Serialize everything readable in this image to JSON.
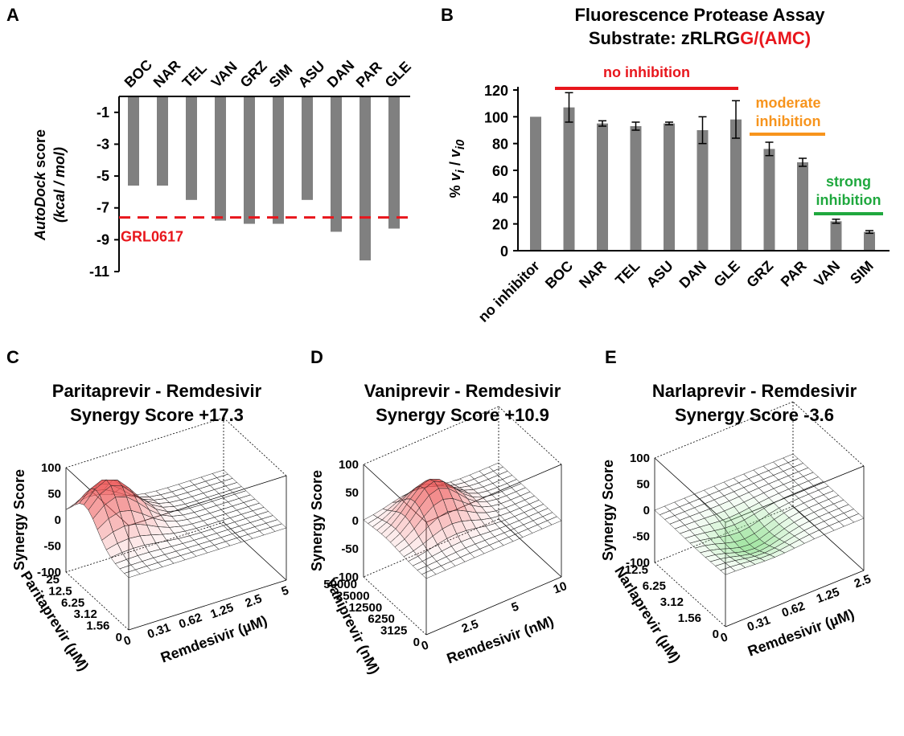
{
  "colors": {
    "bar": "#808080",
    "red": "#e8161c",
    "orange": "#f7941d",
    "green": "#1fa83e",
    "surface_pos": "#ee5a5a",
    "surface_neg": "#8fe08f"
  },
  "chart_data": [
    {
      "id": "A",
      "type": "bar",
      "panel_label": "A",
      "categories": [
        "BOC",
        "NAR",
        "TEL",
        "VAN",
        "GRZ",
        "SIM",
        "ASU",
        "DAN",
        "PAR",
        "GLE"
      ],
      "values": [
        -5.6,
        -5.6,
        -6.5,
        -7.8,
        -8.0,
        -8.0,
        -6.5,
        -8.5,
        -10.3,
        -8.3
      ],
      "ylabel_italic": "AutoDock",
      "ylabel_rest": " score",
      "ylabel_units": "(kcal / mol)",
      "yticks": [
        -1,
        -3,
        -5,
        -7,
        -9,
        -11
      ],
      "ylim": [
        0,
        -11
      ],
      "reference_line": {
        "label": "GRL0617",
        "value": -7.6,
        "style": "dashed"
      }
    },
    {
      "id": "B",
      "type": "bar",
      "panel_label": "B",
      "title_line1": "Fluorescence Protease Assay",
      "title_line2_black": "Substrate: zRLRG",
      "title_line2_red": "G/(AMC)",
      "categories": [
        "no inhibitor",
        "BOC",
        "NAR",
        "TEL",
        "ASU",
        "DAN",
        "GLE",
        "GRZ",
        "PAR",
        "VAN",
        "SIM"
      ],
      "values": [
        100,
        107,
        95,
        93,
        95,
        90,
        98,
        76,
        66,
        22,
        14
      ],
      "errors": [
        0,
        11,
        2,
        3,
        1,
        10,
        14,
        5,
        3,
        1.5,
        1
      ],
      "ylabel_pct": "% ",
      "ylabel_v": "v",
      "ylabel_i": "i",
      "ylabel_slash": " / ",
      "ylabel_v2": "v",
      "ylabel_i0": "i0",
      "yticks": [
        0,
        20,
        40,
        60,
        80,
        100,
        120
      ],
      "ylim": [
        0,
        120
      ],
      "annotations": {
        "none": "no inhibition",
        "moderate_1": "moderate",
        "moderate_2": "inhibition",
        "strong_1": "strong",
        "strong_2": "inhibition"
      }
    },
    {
      "id": "C",
      "type": "surface",
      "panel_label": "C",
      "title_line1": "Paritaprevir - Remdesivir",
      "title_line2": "Synergy Score +17.3",
      "zlabel": "Synergy Score",
      "zticks": [
        "100",
        "50",
        "0",
        "-50",
        "-100"
      ],
      "ylabel": "Paritaprevir (µM)",
      "yticks": [
        "25",
        "12.5",
        "6.25",
        "3.12",
        "1.56",
        "0"
      ],
      "xlabel": "Remdesivir (µM)",
      "xticks": [
        "0",
        "0.31",
        "0.62",
        "1.25",
        "2.5",
        "5"
      ],
      "peak": {
        "height": 95,
        "polarity": "positive"
      }
    },
    {
      "id": "D",
      "type": "surface",
      "panel_label": "D",
      "title_line1": "Vaniprevir - Remdesivir",
      "title_line2": "Synergy Score +10.9",
      "zlabel": "Synergy Score",
      "zticks": [
        "100",
        "50",
        "0",
        "-50",
        "-100"
      ],
      "ylabel": "Vaniprevir (nM)",
      "yticks": [
        "50000",
        "25000",
        "12500",
        "6250",
        "3125",
        "0"
      ],
      "xlabel": "Remdesivir (nM)",
      "xticks": [
        "0",
        "2.5",
        "5",
        "10"
      ],
      "peak": {
        "height": 70,
        "polarity": "positive"
      }
    },
    {
      "id": "E",
      "type": "surface",
      "panel_label": "E",
      "title_line1": "Narlaprevir - Remdesivir",
      "title_line2": "Synergy Score -3.6",
      "zlabel": "Synergy Score",
      "zticks": [
        "100",
        "50",
        "0",
        "-50",
        "-100"
      ],
      "ylabel": "Narlaprevir (µM)",
      "yticks": [
        "12.5",
        "6.25",
        "3.12",
        "1.56",
        "0"
      ],
      "xlabel": "Remdesivir (µM)",
      "xticks": [
        "0",
        "0.31",
        "0.62",
        "1.25",
        "2.5"
      ],
      "peak": {
        "height": -25,
        "polarity": "negative"
      }
    }
  ]
}
